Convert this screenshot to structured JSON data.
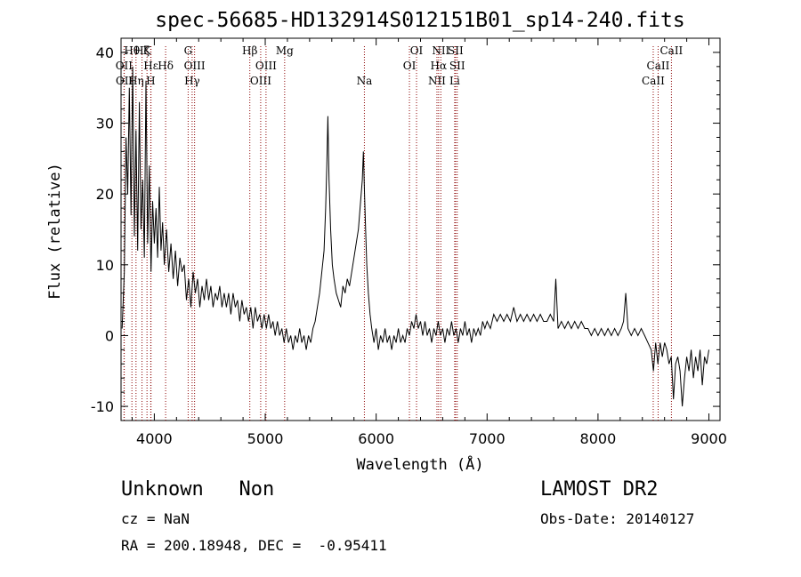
{
  "header": {
    "title": "spec-56685-HD132914S012151B01_sp14-240.fits"
  },
  "footer": {
    "class_label": "Unknown",
    "subclass_label": "Non",
    "survey": "LAMOST DR2",
    "cz": "cz = NaN",
    "obs_date": "Obs-Date: 20140127",
    "radec": "RA = 200.18948, DEC =  -0.95411"
  },
  "chart_data": {
    "type": "line",
    "xlabel": "Wavelength (Å)",
    "ylabel": "Flux (relative)",
    "xlim": [
      3700,
      9100
    ],
    "ylim": [
      -12,
      42
    ],
    "xticks": [
      4000,
      5000,
      6000,
      7000,
      8000,
      9000
    ],
    "yticks": [
      -10,
      0,
      10,
      20,
      30,
      40
    ],
    "grid": false,
    "line_color": "#000000",
    "marker_color": "#8b0000",
    "spectral_lines": [
      {
        "name": "OII",
        "wavelength": 3727,
        "row": 1
      },
      {
        "name": "OII",
        "wavelength": 3729,
        "row": 2
      },
      {
        "name": "Hθ",
        "wavelength": 3798,
        "row": 0
      },
      {
        "name": "Hη",
        "wavelength": 3835,
        "row": 2
      },
      {
        "name": "Hζ",
        "wavelength": 3889,
        "row": 0
      },
      {
        "name": "Hε",
        "wavelength": 3970,
        "row": 1
      },
      {
        "name": "H",
        "wavelength": 3968,
        "row": 2
      },
      {
        "name": "K",
        "wavelength": 3934,
        "row": 0
      },
      {
        "name": "Hδ",
        "wavelength": 4102,
        "row": 1
      },
      {
        "name": "G",
        "wavelength": 4305,
        "row": 0
      },
      {
        "name": "OIII",
        "wavelength": 4363,
        "row": 1
      },
      {
        "name": "Hγ",
        "wavelength": 4341,
        "row": 2
      },
      {
        "name": "Hβ",
        "wavelength": 4861,
        "row": 0
      },
      {
        "name": "OIII",
        "wavelength": 5007,
        "row": 1
      },
      {
        "name": "OIII",
        "wavelength": 4959,
        "row": 2
      },
      {
        "name": "Mg",
        "wavelength": 5175,
        "row": 0
      },
      {
        "name": "Na",
        "wavelength": 5894,
        "row": 2
      },
      {
        "name": "OI",
        "wavelength": 6364,
        "row": 0
      },
      {
        "name": "OI",
        "wavelength": 6300,
        "row": 1
      },
      {
        "name": "NII",
        "wavelength": 6583,
        "row": 0
      },
      {
        "name": "Hα",
        "wavelength": 6563,
        "row": 1
      },
      {
        "name": "NII",
        "wavelength": 6548,
        "row": 2
      },
      {
        "name": "SII",
        "wavelength": 6716,
        "row": 0
      },
      {
        "name": "SII",
        "wavelength": 6731,
        "row": 1
      },
      {
        "name": "Li",
        "wavelength": 6708,
        "row": 2
      },
      {
        "name": "CaII",
        "wavelength": 8662,
        "row": 0
      },
      {
        "name": "CaII",
        "wavelength": 8542,
        "row": 1
      },
      {
        "name": "CaII",
        "wavelength": 8498,
        "row": 2
      }
    ],
    "series": [
      {
        "points": [
          [
            3710,
            1
          ],
          [
            3730,
            9
          ],
          [
            3745,
            28
          ],
          [
            3760,
            20
          ],
          [
            3775,
            35
          ],
          [
            3790,
            17
          ],
          [
            3805,
            38
          ],
          [
            3820,
            14
          ],
          [
            3835,
            29
          ],
          [
            3850,
            12
          ],
          [
            3865,
            33
          ],
          [
            3880,
            15
          ],
          [
            3895,
            22
          ],
          [
            3910,
            11
          ],
          [
            3925,
            36
          ],
          [
            3940,
            13
          ],
          [
            3955,
            24
          ],
          [
            3970,
            9
          ],
          [
            3985,
            19
          ],
          [
            4000,
            13
          ],
          [
            4015,
            18
          ],
          [
            4030,
            11
          ],
          [
            4045,
            21
          ],
          [
            4060,
            12
          ],
          [
            4075,
            16
          ],
          [
            4090,
            10
          ],
          [
            4110,
            15
          ],
          [
            4130,
            9
          ],
          [
            4150,
            13
          ],
          [
            4170,
            8
          ],
          [
            4190,
            12
          ],
          [
            4210,
            7
          ],
          [
            4230,
            11
          ],
          [
            4250,
            9
          ],
          [
            4270,
            10
          ],
          [
            4290,
            5
          ],
          [
            4310,
            8
          ],
          [
            4330,
            4
          ],
          [
            4350,
            9
          ],
          [
            4370,
            6
          ],
          [
            4390,
            8
          ],
          [
            4410,
            4
          ],
          [
            4430,
            7
          ],
          [
            4450,
            5
          ],
          [
            4470,
            8
          ],
          [
            4490,
            5
          ],
          [
            4510,
            7
          ],
          [
            4530,
            4
          ],
          [
            4550,
            6
          ],
          [
            4570,
            5
          ],
          [
            4590,
            7
          ],
          [
            4610,
            4
          ],
          [
            4630,
            6
          ],
          [
            4650,
            4
          ],
          [
            4670,
            6
          ],
          [
            4690,
            3
          ],
          [
            4710,
            6
          ],
          [
            4730,
            4
          ],
          [
            4750,
            5
          ],
          [
            4770,
            2
          ],
          [
            4790,
            5
          ],
          [
            4810,
            3
          ],
          [
            4830,
            4
          ],
          [
            4850,
            2
          ],
          [
            4870,
            4
          ],
          [
            4890,
            1
          ],
          [
            4910,
            4
          ],
          [
            4930,
            2
          ],
          [
            4950,
            3
          ],
          [
            4970,
            1
          ],
          [
            4990,
            3
          ],
          [
            5010,
            1
          ],
          [
            5030,
            3
          ],
          [
            5050,
            1
          ],
          [
            5070,
            2
          ],
          [
            5090,
            0
          ],
          [
            5110,
            2
          ],
          [
            5130,
            0
          ],
          [
            5150,
            1
          ],
          [
            5170,
            -1
          ],
          [
            5190,
            1
          ],
          [
            5210,
            -1
          ],
          [
            5230,
            0
          ],
          [
            5250,
            -2
          ],
          [
            5270,
            0
          ],
          [
            5290,
            -1
          ],
          [
            5310,
            1
          ],
          [
            5330,
            -1
          ],
          [
            5350,
            0
          ],
          [
            5370,
            -2
          ],
          [
            5390,
            0
          ],
          [
            5410,
            -1
          ],
          [
            5430,
            1
          ],
          [
            5450,
            2
          ],
          [
            5470,
            4
          ],
          [
            5490,
            6
          ],
          [
            5510,
            9
          ],
          [
            5530,
            12
          ],
          [
            5545,
            18
          ],
          [
            5555,
            24
          ],
          [
            5565,
            31
          ],
          [
            5575,
            22
          ],
          [
            5590,
            15
          ],
          [
            5605,
            10
          ],
          [
            5620,
            8
          ],
          [
            5640,
            6
          ],
          [
            5660,
            5
          ],
          [
            5680,
            4
          ],
          [
            5700,
            7
          ],
          [
            5720,
            6
          ],
          [
            5740,
            8
          ],
          [
            5760,
            7
          ],
          [
            5780,
            9
          ],
          [
            5800,
            11
          ],
          [
            5820,
            13
          ],
          [
            5840,
            15
          ],
          [
            5860,
            19
          ],
          [
            5875,
            22
          ],
          [
            5885,
            26
          ],
          [
            5895,
            20
          ],
          [
            5905,
            15
          ],
          [
            5915,
            10
          ],
          [
            5930,
            6
          ],
          [
            5945,
            3
          ],
          [
            5960,
            1
          ],
          [
            5980,
            -1
          ],
          [
            6000,
            1
          ],
          [
            6020,
            -2
          ],
          [
            6040,
            0
          ],
          [
            6060,
            -1
          ],
          [
            6080,
            1
          ],
          [
            6100,
            -1
          ],
          [
            6120,
            0
          ],
          [
            6140,
            -2
          ],
          [
            6160,
            0
          ],
          [
            6180,
            -1
          ],
          [
            6200,
            1
          ],
          [
            6220,
            -1
          ],
          [
            6240,
            0
          ],
          [
            6260,
            -1
          ],
          [
            6280,
            1
          ],
          [
            6300,
            0
          ],
          [
            6320,
            2
          ],
          [
            6340,
            1
          ],
          [
            6360,
            3
          ],
          [
            6380,
            1
          ],
          [
            6400,
            2
          ],
          [
            6420,
            0
          ],
          [
            6440,
            2
          ],
          [
            6460,
            0
          ],
          [
            6480,
            1
          ],
          [
            6500,
            -1
          ],
          [
            6520,
            1
          ],
          [
            6540,
            0
          ],
          [
            6560,
            2
          ],
          [
            6580,
            0
          ],
          [
            6600,
            1
          ],
          [
            6620,
            -1
          ],
          [
            6640,
            1
          ],
          [
            6660,
            0
          ],
          [
            6680,
            2
          ],
          [
            6700,
            0
          ],
          [
            6720,
            1
          ],
          [
            6740,
            -1
          ],
          [
            6760,
            1
          ],
          [
            6780,
            0
          ],
          [
            6800,
            2
          ],
          [
            6820,
            0
          ],
          [
            6840,
            1
          ],
          [
            6860,
            -1
          ],
          [
            6880,
            1
          ],
          [
            6900,
            0
          ],
          [
            6920,
            1
          ],
          [
            6940,
            0
          ],
          [
            6960,
            2
          ],
          [
            6980,
            1
          ],
          [
            7000,
            2
          ],
          [
            7030,
            1
          ],
          [
            7060,
            3
          ],
          [
            7090,
            2
          ],
          [
            7120,
            3
          ],
          [
            7150,
            2
          ],
          [
            7180,
            3
          ],
          [
            7210,
            2
          ],
          [
            7240,
            4
          ],
          [
            7270,
            2
          ],
          [
            7300,
            3
          ],
          [
            7330,
            2
          ],
          [
            7360,
            3
          ],
          [
            7390,
            2
          ],
          [
            7420,
            3
          ],
          [
            7450,
            2
          ],
          [
            7480,
            3
          ],
          [
            7510,
            2
          ],
          [
            7540,
            2
          ],
          [
            7570,
            3
          ],
          [
            7600,
            2
          ],
          [
            7620,
            8
          ],
          [
            7640,
            1
          ],
          [
            7670,
            2
          ],
          [
            7700,
            1
          ],
          [
            7730,
            2
          ],
          [
            7760,
            1
          ],
          [
            7790,
            2
          ],
          [
            7820,
            1
          ],
          [
            7850,
            2
          ],
          [
            7880,
            1
          ],
          [
            7910,
            1
          ],
          [
            7940,
            0
          ],
          [
            7970,
            1
          ],
          [
            8000,
            0
          ],
          [
            8030,
            1
          ],
          [
            8060,
            0
          ],
          [
            8090,
            1
          ],
          [
            8120,
            0
          ],
          [
            8150,
            1
          ],
          [
            8180,
            0
          ],
          [
            8210,
            1
          ],
          [
            8230,
            2
          ],
          [
            8250,
            6
          ],
          [
            8270,
            1
          ],
          [
            8300,
            0
          ],
          [
            8330,
            1
          ],
          [
            8360,
            0
          ],
          [
            8390,
            1
          ],
          [
            8420,
            0
          ],
          [
            8450,
            -1
          ],
          [
            8480,
            -2
          ],
          [
            8500,
            -5
          ],
          [
            8520,
            -1
          ],
          [
            8540,
            -4
          ],
          [
            8560,
            -1
          ],
          [
            8580,
            -3
          ],
          [
            8600,
            -1
          ],
          [
            8620,
            -2
          ],
          [
            8640,
            -4
          ],
          [
            8660,
            -3
          ],
          [
            8680,
            -9
          ],
          [
            8700,
            -4
          ],
          [
            8720,
            -3
          ],
          [
            8740,
            -5
          ],
          [
            8760,
            -10
          ],
          [
            8780,
            -6
          ],
          [
            8800,
            -3
          ],
          [
            8820,
            -5
          ],
          [
            8840,
            -2
          ],
          [
            8860,
            -6
          ],
          [
            8880,
            -3
          ],
          [
            8900,
            -5
          ],
          [
            8920,
            -2
          ],
          [
            8940,
            -7
          ],
          [
            8960,
            -3
          ],
          [
            8980,
            -4
          ],
          [
            9000,
            -2
          ]
        ]
      }
    ]
  }
}
